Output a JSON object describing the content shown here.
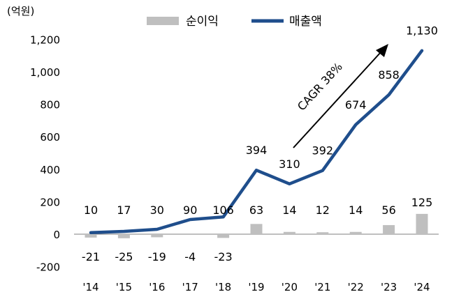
{
  "chart_data": {
    "type": "bar+line",
    "unit_label": "(억원)",
    "categories": [
      "'14",
      "'15",
      "'16",
      "'17",
      "'18",
      "'19",
      "'20",
      "'21",
      "'22",
      "'23",
      "'24"
    ],
    "series": [
      {
        "name": "순이익",
        "type": "bar",
        "color": "#bfbfbf",
        "values": [
          -21,
          -25,
          -19,
          -4,
          -23,
          63,
          14,
          12,
          14,
          56,
          125
        ]
      },
      {
        "name": "매출액",
        "type": "line",
        "color": "#1f4e8c",
        "values": [
          10,
          17,
          30,
          90,
          106,
          394,
          310,
          392,
          674,
          858,
          1130
        ]
      }
    ],
    "bar_labels": [
      "-21",
      "-25",
      "-19",
      "-4",
      "-23",
      "63",
      "14",
      "12",
      "14",
      "56",
      "125"
    ],
    "line_labels": [
      "10",
      "17",
      "30",
      "90",
      "106",
      "394",
      "310",
      "392",
      "674",
      "858",
      "1,130"
    ],
    "yticks": [
      "-200",
      "0",
      "200",
      "400",
      "600",
      "800",
      "1,000",
      "1,200"
    ],
    "ylim": [
      -200,
      1200
    ],
    "annotation": "CAGR 38%",
    "legend_position": "top-center",
    "grid": false
  }
}
